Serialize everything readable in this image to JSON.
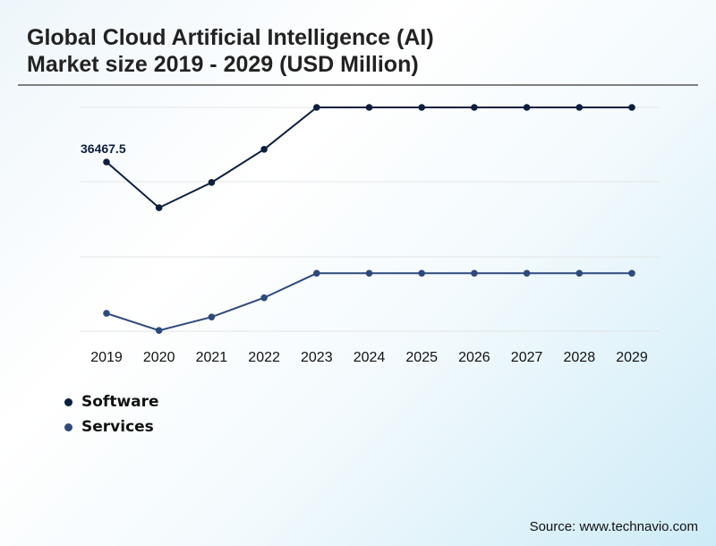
{
  "title_lines": [
    "Global Cloud Artificial Intelligence (AI)",
    "Market size 2019 - 2029 (USD Million)"
  ],
  "source": "Source: www.technavio.com",
  "chart_data": {
    "type": "line",
    "title": "Global Cloud Artificial Intelligence (AI) Market size 2019 - 2029 (USD Million)",
    "xlabel": "",
    "ylabel": "USD Million",
    "categories": [
      "2019",
      "2020",
      "2021",
      "2022",
      "2023",
      "2024",
      "2025",
      "2026",
      "2027",
      "2028",
      "2029"
    ],
    "grid": true,
    "legend_position": "bottom-left",
    "layout": "two stacked panels (one per series), no y-axis ticks",
    "series": [
      {
        "name": "Software",
        "color": "#0d1f3f",
        "values": [
          36467.5,
          33300,
          35050,
          37350,
          40250,
          40250,
          40250,
          40250,
          40250,
          40250,
          40250
        ],
        "data_labels": {
          "0": "36467.5"
        },
        "note": "Only 2019 value labeled; others estimated relative to it"
      },
      {
        "name": "Services",
        "color": "#2e4a7d",
        "values": [
          0.24,
          0.01,
          0.19,
          0.45,
          0.78,
          0.78,
          0.78,
          0.78,
          0.78,
          0.78,
          0.78
        ],
        "note": "Unlabeled; relative position within panel (0=lower gridline, 1=upper gridline)"
      }
    ]
  },
  "legend": [
    {
      "label": "Software",
      "color": "#0d1f3f"
    },
    {
      "label": "Services",
      "color": "#2e4a7d"
    }
  ]
}
